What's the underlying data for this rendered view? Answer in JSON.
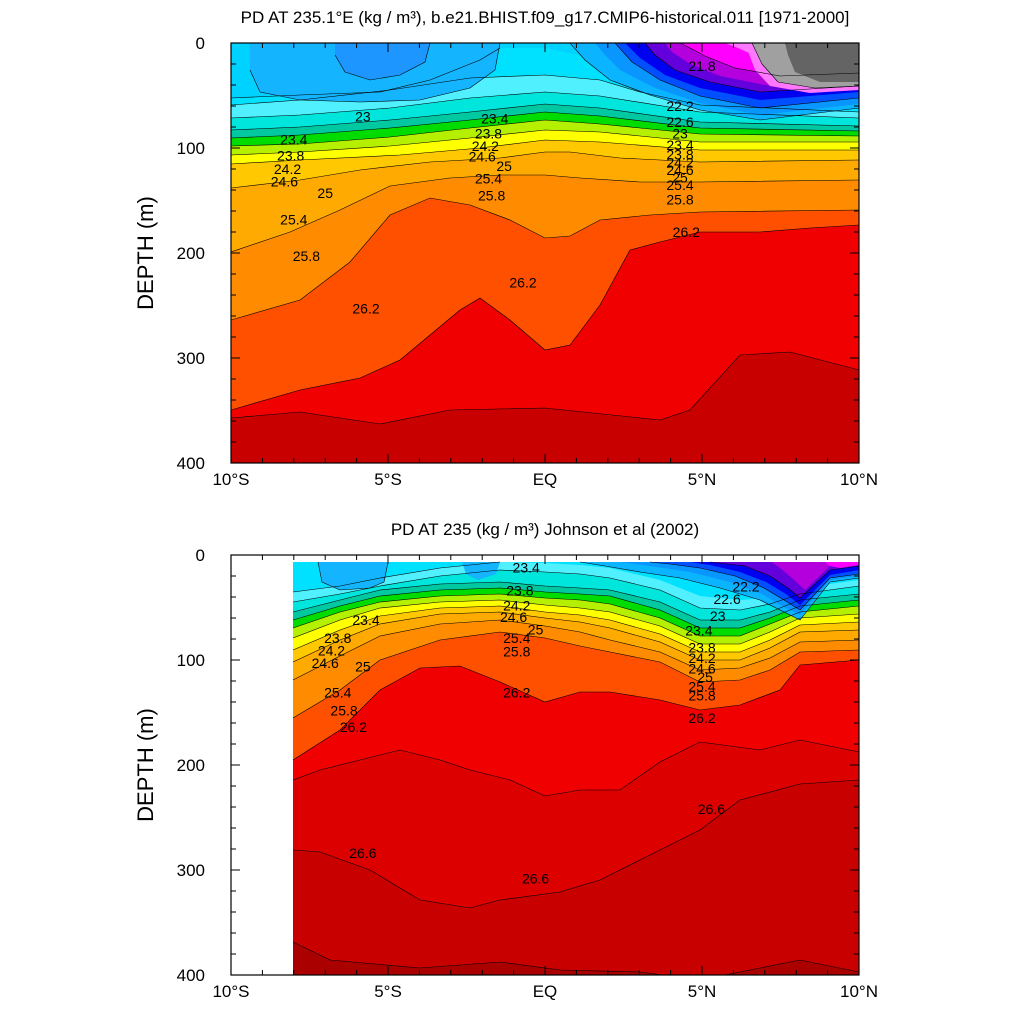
{
  "chart_data": [
    {
      "type": "heatmap",
      "title": "PD AT 235.1°E (kg / m³), b.e21.BHIST.f09_g17.CMIP6-historical.011 [1971-2000]",
      "ylabel": "DEPTH (m)",
      "xlabel": "",
      "xlim": [
        -10,
        10
      ],
      "ylim": [
        0,
        400
      ],
      "y_inverted": true,
      "x_ticks": [
        -10,
        -5,
        0,
        5,
        10
      ],
      "x_tick_labels": [
        "10°S",
        "5°S",
        "EQ",
        "5°N",
        "10°N"
      ],
      "y_ticks": [
        0,
        100,
        200,
        300,
        400
      ],
      "y_tick_labels": [
        "0",
        "100",
        "200",
        "300",
        "400"
      ],
      "data_xmin": -10,
      "contour_labels": [
        {
          "text": "23",
          "x": -5.8,
          "y": 70
        },
        {
          "text": "23.4",
          "x": -8.0,
          "y": 92
        },
        {
          "text": "23.8",
          "x": -8.1,
          "y": 107
        },
        {
          "text": "24.2",
          "x": -8.2,
          "y": 120
        },
        {
          "text": "24.6",
          "x": -8.3,
          "y": 132
        },
        {
          "text": "25",
          "x": -7.0,
          "y": 143
        },
        {
          "text": "25.4",
          "x": -8.0,
          "y": 168
        },
        {
          "text": "25.8",
          "x": -7.6,
          "y": 203
        },
        {
          "text": "26.2",
          "x": -5.7,
          "y": 253
        },
        {
          "text": "23.4",
          "x": -1.6,
          "y": 72
        },
        {
          "text": "23.8",
          "x": -1.8,
          "y": 86
        },
        {
          "text": "24.2",
          "x": -1.9,
          "y": 98
        },
        {
          "text": "24.6",
          "x": -2.0,
          "y": 108
        },
        {
          "text": "25",
          "x": -1.3,
          "y": 117
        },
        {
          "text": "25.4",
          "x": -1.8,
          "y": 129
        },
        {
          "text": "25.8",
          "x": -1.7,
          "y": 145
        },
        {
          "text": "26.2",
          "x": -0.7,
          "y": 228
        },
        {
          "text": "21.8",
          "x": 5.0,
          "y": 22
        },
        {
          "text": "22.2",
          "x": 4.3,
          "y": 60
        },
        {
          "text": "22.6",
          "x": 4.3,
          "y": 75
        },
        {
          "text": "23",
          "x": 4.3,
          "y": 86
        },
        {
          "text": "23.4",
          "x": 4.3,
          "y": 97
        },
        {
          "text": "23.8",
          "x": 4.3,
          "y": 106
        },
        {
          "text": "24.2",
          "x": 4.3,
          "y": 114
        },
        {
          "text": "24.6",
          "x": 4.3,
          "y": 121
        },
        {
          "text": "25",
          "x": 4.3,
          "y": 128
        },
        {
          "text": "25.4",
          "x": 4.3,
          "y": 135
        },
        {
          "text": "25.8",
          "x": 4.3,
          "y": 149
        },
        {
          "text": "26.2",
          "x": 4.5,
          "y": 180
        }
      ]
    },
    {
      "type": "heatmap",
      "title": "PD AT 235 (kg / m³) Johnson et al (2002)",
      "ylabel": "DEPTH (m)",
      "xlabel": "",
      "xlim": [
        -10,
        10
      ],
      "ylim": [
        0,
        400
      ],
      "y_inverted": true,
      "x_ticks": [
        -10,
        -5,
        0,
        5,
        10
      ],
      "x_tick_labels": [
        "10°S",
        "5°S",
        "EQ",
        "5°N",
        "10°N"
      ],
      "y_ticks": [
        0,
        100,
        200,
        300,
        400
      ],
      "y_tick_labels": [
        "0",
        "100",
        "200",
        "300",
        "400"
      ],
      "data_xmin": -8,
      "contour_labels": [
        {
          "text": "23.4",
          "x": -5.7,
          "y": 62
        },
        {
          "text": "23.8",
          "x": -6.6,
          "y": 79
        },
        {
          "text": "24.2",
          "x": -6.8,
          "y": 91
        },
        {
          "text": "24.6",
          "x": -7.0,
          "y": 103
        },
        {
          "text": "25",
          "x": -5.8,
          "y": 106
        },
        {
          "text": "25.4",
          "x": -6.6,
          "y": 131
        },
        {
          "text": "25.8",
          "x": -6.4,
          "y": 148
        },
        {
          "text": "26.2",
          "x": -6.1,
          "y": 164
        },
        {
          "text": "26.6",
          "x": -5.8,
          "y": 284
        },
        {
          "text": "23.4",
          "x": -0.6,
          "y": 12
        },
        {
          "text": "23.8",
          "x": -0.8,
          "y": 34
        },
        {
          "text": "24.2",
          "x": -0.9,
          "y": 48
        },
        {
          "text": "24.6",
          "x": -1.0,
          "y": 59
        },
        {
          "text": "25",
          "x": -0.3,
          "y": 71
        },
        {
          "text": "25.4",
          "x": -0.9,
          "y": 79
        },
        {
          "text": "25.8",
          "x": -0.9,
          "y": 92
        },
        {
          "text": "26.2",
          "x": -0.9,
          "y": 131
        },
        {
          "text": "26.6",
          "x": -0.3,
          "y": 308
        },
        {
          "text": "22.6",
          "x": 5.8,
          "y": 42
        },
        {
          "text": "22.2",
          "x": 6.4,
          "y": 30
        },
        {
          "text": "23",
          "x": 5.5,
          "y": 58
        },
        {
          "text": "23.4",
          "x": 4.9,
          "y": 72
        },
        {
          "text": "23.8",
          "x": 5.0,
          "y": 88
        },
        {
          "text": "24.2",
          "x": 5.0,
          "y": 98
        },
        {
          "text": "24.6",
          "x": 5.0,
          "y": 108
        },
        {
          "text": "25",
          "x": 5.1,
          "y": 116
        },
        {
          "text": "25.4",
          "x": 5.0,
          "y": 125
        },
        {
          "text": "25.8",
          "x": 5.0,
          "y": 134
        },
        {
          "text": "26.2",
          "x": 5.0,
          "y": 155
        },
        {
          "text": "26.6",
          "x": 5.3,
          "y": 242
        }
      ]
    }
  ]
}
